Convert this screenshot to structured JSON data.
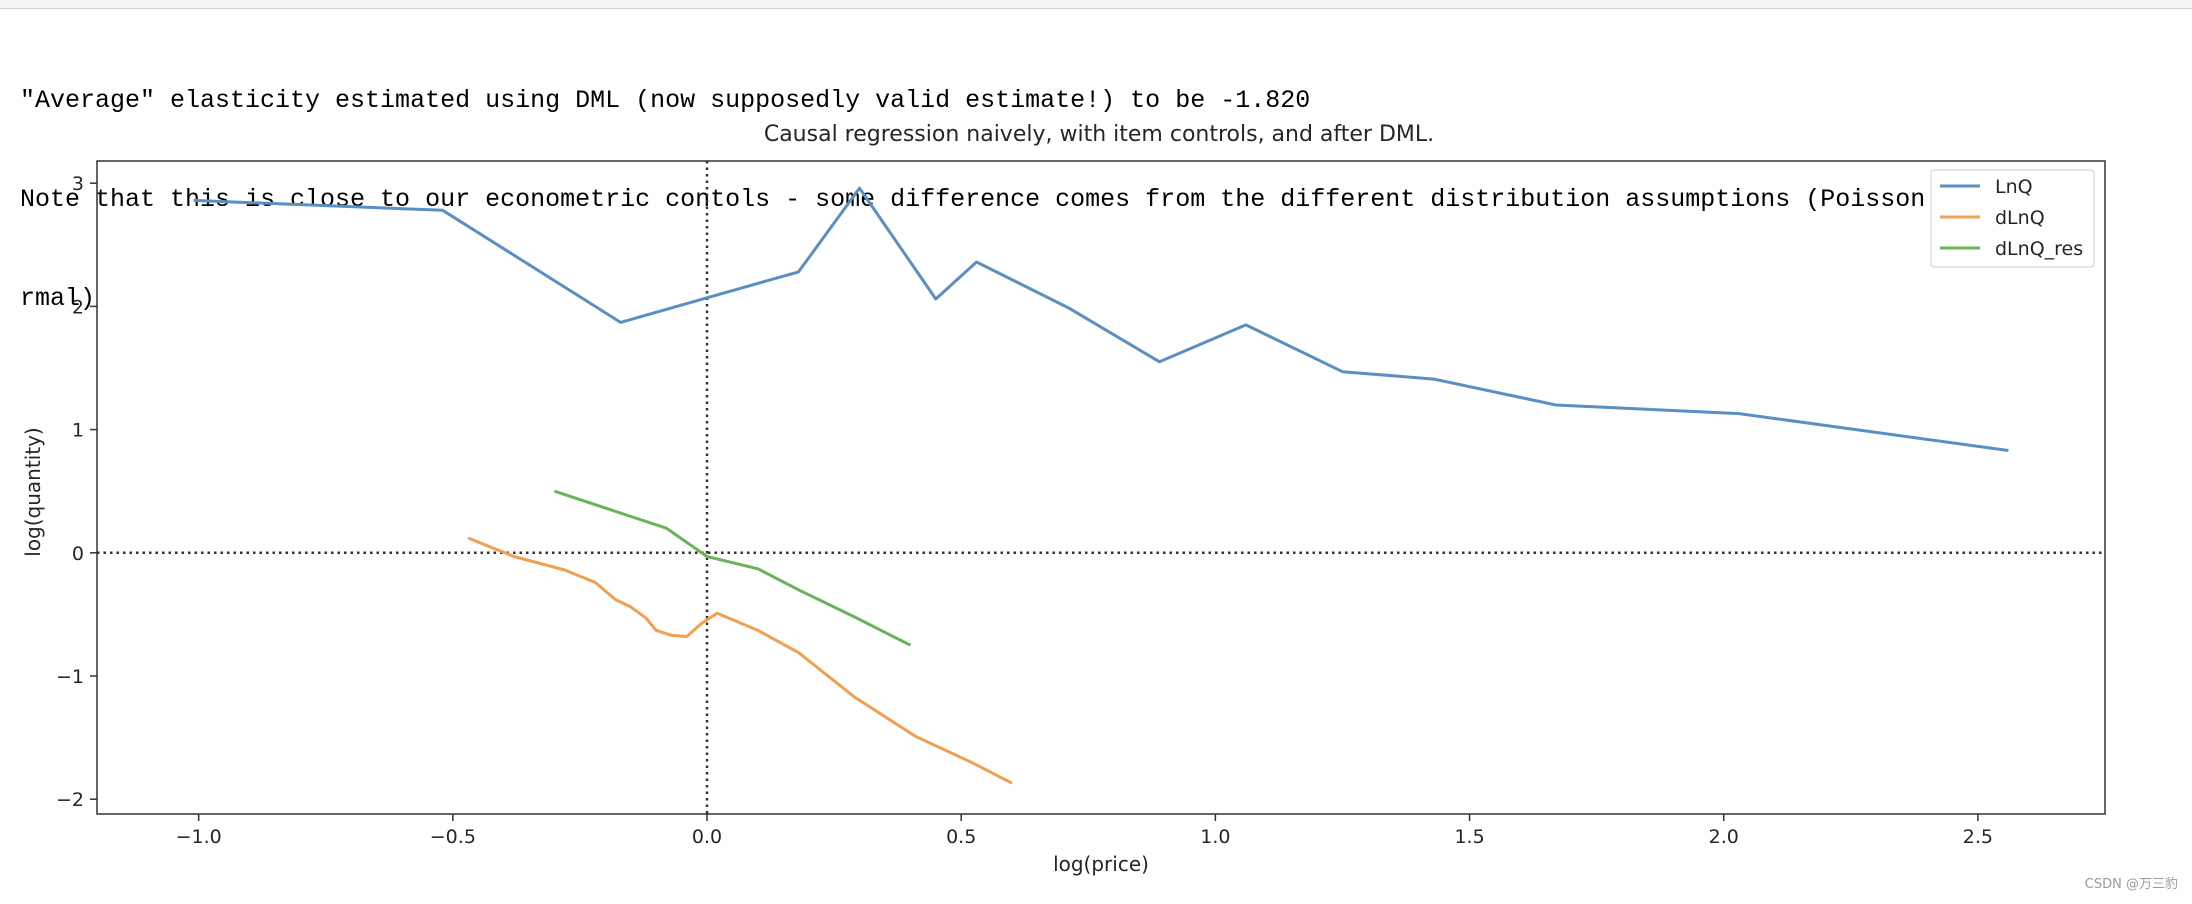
{
  "output": {
    "line1": "\"Average\" elasticity estimated using DML (now supposedly valid estimate!) to be -1.820",
    "line2": "Note that this is close to our econometric contols - some difference comes from the different distribution assumptions (Poisson vs. log-no",
    "line3": "rmal)"
  },
  "chart_data": {
    "type": "line",
    "title": "Causal regression naively, with item controls, and after DML.",
    "xlabel": "log(price)",
    "ylabel": "log(quantity)",
    "xlim": [
      -1.2,
      2.75
    ],
    "ylim": [
      -2.12,
      3.18
    ],
    "xticks": [
      -1.0,
      -0.5,
      0.0,
      0.5,
      1.0,
      1.5,
      2.0,
      2.5
    ],
    "xtick_labels": [
      "−1.0",
      "−0.5",
      "0.0",
      "0.5",
      "1.0",
      "1.5",
      "2.0",
      "2.5"
    ],
    "yticks": [
      3,
      2,
      1,
      0,
      -1,
      -2
    ],
    "ytick_labels": [
      "3",
      "2",
      "1",
      "0",
      "−1",
      "−2"
    ],
    "reference_lines": [
      {
        "orientation": "vertical",
        "at": 0,
        "style": "dotted"
      },
      {
        "orientation": "horizontal",
        "at": 0,
        "style": "dotted"
      }
    ],
    "legend_position": "top-right",
    "grid": false,
    "series": [
      {
        "name": "LnQ",
        "color": "#5b8fc3",
        "points": [
          [
            -1.01,
            2.86
          ],
          [
            -0.52,
            2.78
          ],
          [
            -0.17,
            1.87
          ],
          [
            0.0,
            2.07
          ],
          [
            0.18,
            2.28
          ],
          [
            0.3,
            2.96
          ],
          [
            0.45,
            2.06
          ],
          [
            0.53,
            2.36
          ],
          [
            0.71,
            1.99
          ],
          [
            0.89,
            1.55
          ],
          [
            1.06,
            1.85
          ],
          [
            1.25,
            1.47
          ],
          [
            1.43,
            1.41
          ],
          [
            1.67,
            1.2
          ],
          [
            2.03,
            1.13
          ],
          [
            2.56,
            0.83
          ]
        ]
      },
      {
        "name": "dLnQ",
        "color": "#f0a050",
        "points": [
          [
            -0.47,
            0.12
          ],
          [
            -0.38,
            -0.03
          ],
          [
            -0.28,
            -0.14
          ],
          [
            -0.22,
            -0.24
          ],
          [
            -0.18,
            -0.38
          ],
          [
            -0.15,
            -0.44
          ],
          [
            -0.12,
            -0.53
          ],
          [
            -0.1,
            -0.63
          ],
          [
            -0.07,
            -0.67
          ],
          [
            -0.04,
            -0.68
          ],
          [
            -0.01,
            -0.57
          ],
          [
            0.02,
            -0.49
          ],
          [
            0.1,
            -0.63
          ],
          [
            0.18,
            -0.81
          ],
          [
            0.29,
            -1.17
          ],
          [
            0.41,
            -1.49
          ],
          [
            0.52,
            -1.7
          ],
          [
            0.6,
            -1.87
          ]
        ]
      },
      {
        "name": "dLnQ_res",
        "color": "#6ab35a",
        "points": [
          [
            -0.3,
            0.5
          ],
          [
            -0.19,
            0.35
          ],
          [
            -0.08,
            0.2
          ],
          [
            0.0,
            -0.03
          ],
          [
            0.1,
            -0.13
          ],
          [
            0.18,
            -0.3
          ],
          [
            0.29,
            -0.52
          ],
          [
            0.4,
            -0.75
          ]
        ]
      }
    ]
  },
  "watermark": "CSDN @万三豹"
}
